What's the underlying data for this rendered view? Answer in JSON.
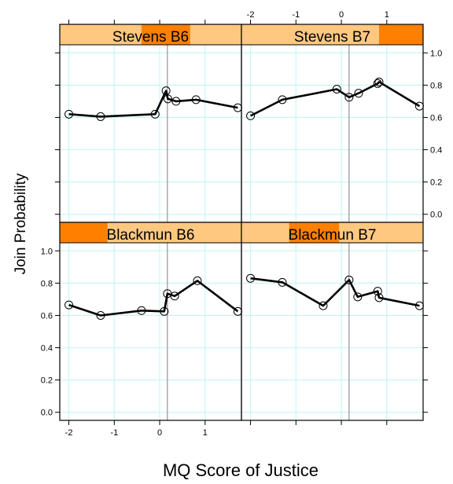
{
  "chart_data": {
    "type": "line",
    "xlabel": "MQ Score of Justice",
    "ylabel": "Join Probability",
    "xlim": [
      -2.2,
      1.8
    ],
    "ylim": [
      -0.05,
      1.05
    ],
    "x_ticks": [
      -2,
      -1,
      0,
      1
    ],
    "y_ticks": [
      0.0,
      0.2,
      0.4,
      0.6,
      0.8,
      1.0
    ],
    "x_tick_labels": [
      "-2",
      "-1",
      "0",
      "1"
    ],
    "y_tick_labels": [
      "0.0",
      "0.2",
      "0.4",
      "0.6",
      "0.8",
      "1.0"
    ],
    "grid": true,
    "reference_x": 0.17,
    "panels": [
      {
        "title": "Stevens B6",
        "strip_highlight": [
          -0.4,
          0.67
        ],
        "x": [
          -2.0,
          -1.3,
          -0.1,
          0.14,
          0.18,
          0.36,
          0.8,
          1.72
        ],
        "y": [
          0.62,
          0.605,
          0.62,
          0.765,
          0.715,
          0.7,
          0.71,
          0.66
        ]
      },
      {
        "title": "Stevens B7",
        "strip_highlight": [
          0.83,
          1.8
        ],
        "x": [
          -2.0,
          -1.3,
          -0.1,
          0.17,
          0.38,
          0.8,
          0.83,
          1.72
        ],
        "y": [
          0.61,
          0.71,
          0.775,
          0.725,
          0.75,
          0.81,
          0.82,
          0.67
        ]
      },
      {
        "title": "Blackmun B6",
        "strip_highlight": [
          -2.2,
          -1.15
        ],
        "x": [
          -2.0,
          -1.3,
          -0.4,
          0.1,
          0.17,
          0.33,
          0.83,
          1.72
        ],
        "y": [
          0.665,
          0.6,
          0.63,
          0.625,
          0.735,
          0.72,
          0.815,
          0.625
        ]
      },
      {
        "title": "Blackmun B7",
        "strip_highlight": [
          -1.15,
          -0.05
        ],
        "x": [
          -2.0,
          -1.3,
          -0.4,
          0.17,
          0.36,
          0.8,
          0.83,
          1.72
        ],
        "y": [
          0.83,
          0.805,
          0.66,
          0.82,
          0.715,
          0.75,
          0.71,
          0.66
        ]
      }
    ]
  },
  "colors": {
    "strip": "#ffc880",
    "strip_highlight": "#ff8000",
    "grid": "#c8f5f5",
    "line": "#000000",
    "reference": "#808080"
  }
}
